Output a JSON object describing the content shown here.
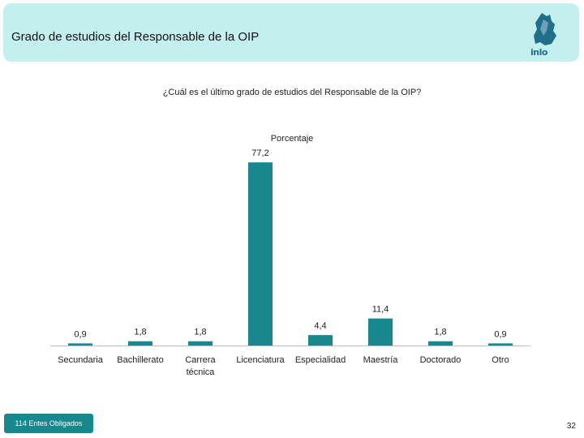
{
  "header": {
    "title": "Grado de estudios del Responsable de la OIP",
    "logo_text": "inlo"
  },
  "chart_data": {
    "type": "bar",
    "title": "¿Cuál es el último grado de estudios del Responsable de la OIP?",
    "subtitle": "Porcentaje",
    "categories": [
      "Secundaria",
      "Bachillerato",
      "Carrera técnica",
      "Licenciatura",
      "Especialidad",
      "Maestría",
      "Doctorado",
      "Otro"
    ],
    "values": [
      0.9,
      1.8,
      1.8,
      77.2,
      4.4,
      11.4,
      1.8,
      0.9
    ],
    "value_labels": [
      "0,9",
      "1,8",
      "1,8",
      "77,2",
      "4,4",
      "11,4",
      "1,8",
      "0,9"
    ],
    "ylim": [
      0,
      100
    ],
    "bar_color": "#17898e",
    "grid": false,
    "legend": "none"
  },
  "footer": {
    "badge": "114 Entes Obligados",
    "page_number": "32"
  }
}
